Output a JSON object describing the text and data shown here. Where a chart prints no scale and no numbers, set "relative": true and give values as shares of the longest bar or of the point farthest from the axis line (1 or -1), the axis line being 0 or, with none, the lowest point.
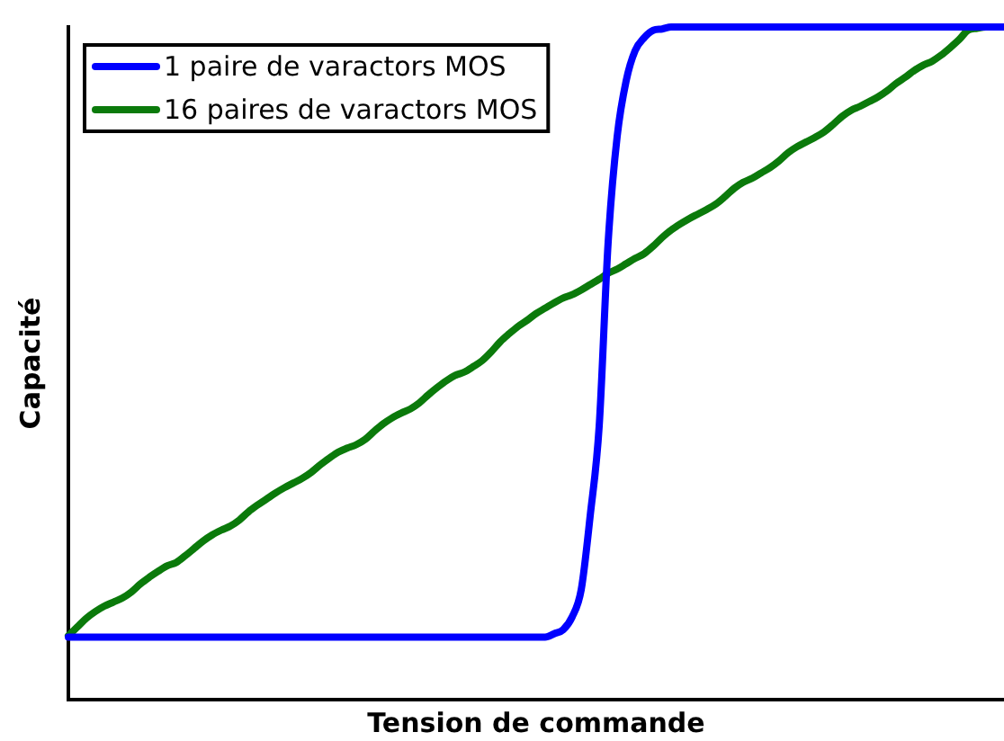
{
  "chart_data": {
    "type": "line",
    "xlabel": "Tension de commande",
    "ylabel": "Capacité",
    "relative": true,
    "legend": "top left",
    "marker": "none",
    "line_style": "solid",
    "tick_labels": false,
    "categories": [
      null,
      null,
      null,
      null,
      null,
      null,
      null,
      null,
      null,
      null,
      null,
      null,
      null,
      null,
      null,
      null,
      null,
      null,
      null,
      null,
      null,
      null,
      null,
      null,
      null,
      null,
      null,
      null,
      null,
      null,
      null,
      null,
      null,
      null,
      null,
      null,
      null,
      null,
      null,
      null,
      null,
      null,
      null,
      null,
      null,
      null,
      null,
      null,
      null,
      null,
      null,
      null,
      null,
      null,
      null,
      null,
      null,
      null,
      null,
      null,
      null,
      null,
      null,
      null,
      null,
      null,
      null,
      null,
      null,
      null,
      null,
      null,
      null,
      null,
      null,
      null,
      null,
      null,
      null,
      null,
      null,
      null,
      null,
      null,
      null,
      null,
      null,
      null,
      null,
      null,
      null,
      null,
      null,
      null,
      null,
      null,
      null,
      null,
      null,
      null,
      null,
      null,
      null,
      null,
      null
    ],
    "series": [
      {
        "name": "1 paire de varactors MOS",
        "color": "#0000ff",
        "values": [
          0.093,
          0.093,
          0.093,
          0.093,
          0.093,
          0.093,
          0.093,
          0.093,
          0.093,
          0.093,
          0.093,
          0.093,
          0.093,
          0.093,
          0.093,
          0.093,
          0.093,
          0.093,
          0.093,
          0.093,
          0.093,
          0.093,
          0.093,
          0.093,
          0.093,
          0.093,
          0.093,
          0.093,
          0.093,
          0.093,
          0.093,
          0.093,
          0.093,
          0.093,
          0.093,
          0.093,
          0.093,
          0.093,
          0.093,
          0.093,
          0.093,
          0.093,
          0.093,
          0.093,
          0.093,
          0.093,
          0.093,
          0.093,
          0.093,
          0.093,
          0.093,
          0.093,
          0.093,
          0.093,
          0.098,
          0.104,
          0.123,
          0.163,
          0.273,
          0.406,
          0.68,
          0.837,
          0.92,
          0.965,
          0.984,
          0.995,
          0.997,
          1,
          1,
          1,
          1,
          1,
          1,
          1,
          1,
          1,
          1,
          1,
          1,
          1,
          1,
          1,
          1,
          1,
          1,
          1,
          1,
          1,
          1,
          1,
          1,
          1,
          1,
          1,
          1,
          1,
          1,
          1,
          1,
          1,
          1,
          1,
          1,
          1,
          1
        ]
      },
      {
        "name": "16 paires de varactors MOS",
        "color": "#0b7a0b",
        "values": [
          0.095,
          0.108,
          0.121,
          0.131,
          0.139,
          0.145,
          0.151,
          0.16,
          0.172,
          0.182,
          0.191,
          0.199,
          0.204,
          0.214,
          0.225,
          0.236,
          0.245,
          0.252,
          0.258,
          0.267,
          0.279,
          0.289,
          0.298,
          0.307,
          0.315,
          0.322,
          0.329,
          0.338,
          0.349,
          0.359,
          0.368,
          0.374,
          0.379,
          0.387,
          0.399,
          0.41,
          0.419,
          0.426,
          0.432,
          0.441,
          0.453,
          0.464,
          0.474,
          0.482,
          0.487,
          0.495,
          0.504,
          0.517,
          0.532,
          0.544,
          0.555,
          0.564,
          0.574,
          0.582,
          0.59,
          0.597,
          0.602,
          0.609,
          0.617,
          0.625,
          0.634,
          0.64,
          0.648,
          0.656,
          0.663,
          0.674,
          0.687,
          0.698,
          0.707,
          0.715,
          0.722,
          0.729,
          0.737,
          0.748,
          0.76,
          0.769,
          0.775,
          0.783,
          0.791,
          0.801,
          0.813,
          0.822,
          0.829,
          0.836,
          0.844,
          0.855,
          0.867,
          0.876,
          0.882,
          0.889,
          0.896,
          0.905,
          0.916,
          0.925,
          0.935,
          0.943,
          0.949,
          0.958,
          0.969,
          0.981,
          0.995,
          0.998,
          1,
          1,
          1
        ]
      }
    ]
  }
}
